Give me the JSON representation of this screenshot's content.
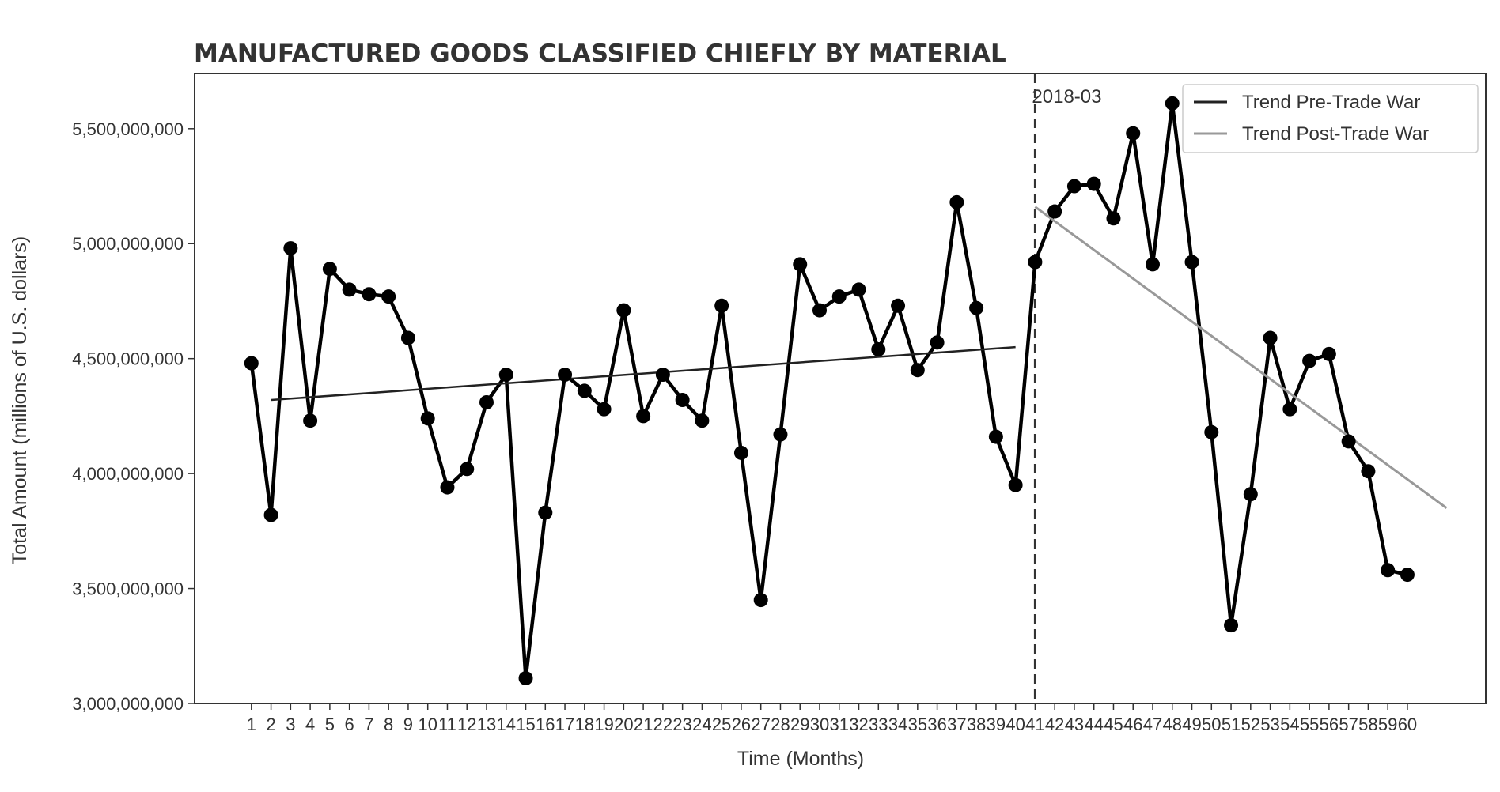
{
  "chart_data": {
    "type": "line",
    "title": "MANUFACTURED GOODS CLASSIFIED CHIEFLY BY MATERIAL",
    "xlabel": "Time (Months)",
    "ylabel": "Total Amount (millions of U.S. dollars)",
    "x": [
      1,
      2,
      3,
      4,
      5,
      6,
      7,
      8,
      9,
      10,
      11,
      12,
      13,
      14,
      15,
      16,
      17,
      18,
      19,
      20,
      21,
      22,
      23,
      24,
      25,
      26,
      27,
      28,
      29,
      30,
      31,
      32,
      33,
      34,
      35,
      36,
      37,
      38,
      39,
      40,
      41,
      42,
      43,
      44,
      45,
      46,
      47,
      48,
      49,
      50,
      51,
      52,
      53,
      54,
      55,
      56,
      57,
      58,
      59,
      60
    ],
    "xtick_labels": [
      "1",
      "2",
      "3",
      "4",
      "5",
      "6",
      "7",
      "8",
      "9",
      "10",
      "11",
      "12",
      "13",
      "14",
      "15",
      "16",
      "17",
      "18",
      "19",
      "20",
      "21",
      "22",
      "23",
      "24",
      "25",
      "26",
      "27",
      "28",
      "29",
      "30",
      "31",
      "32",
      "33",
      "34",
      "35",
      "36",
      "37",
      "38",
      "39",
      "40",
      "41",
      "42",
      "43",
      "44",
      "45",
      "46",
      "47",
      "48",
      "49",
      "50",
      "51",
      "52",
      "53",
      "54",
      "55",
      "56",
      "57",
      "58",
      "59",
      "60"
    ],
    "xlim": [
      -1.9,
      64.0
    ],
    "ylim": [
      3000000000,
      5740000000
    ],
    "yticks": [
      3000000000,
      3500000000,
      4000000000,
      4500000000,
      5000000000,
      5500000000
    ],
    "ytick_labels": [
      "3,000,000,000",
      "3,500,000,000",
      "4,000,000,000",
      "4,500,000,000",
      "5,000,000,000",
      "5,500,000,000"
    ],
    "series": [
      {
        "name": "Total Amount",
        "color": "#000000",
        "marker": "circle",
        "values": [
          4480000000,
          3820000000,
          4980000000,
          4230000000,
          4890000000,
          4800000000,
          4780000000,
          4770000000,
          4590000000,
          4240000000,
          3940000000,
          4020000000,
          4310000000,
          4430000000,
          3110000000,
          3830000000,
          4430000000,
          4360000000,
          4280000000,
          4710000000,
          4250000000,
          4430000000,
          4320000000,
          4230000000,
          4730000000,
          4090000000,
          3450000000,
          4170000000,
          4910000000,
          4710000000,
          4770000000,
          4800000000,
          4540000000,
          4730000000,
          4450000000,
          4570000000,
          5180000000,
          4720000000,
          4160000000,
          3950000000,
          4920000000,
          5140000000,
          5250000000,
          5260000000,
          5110000000,
          5480000000,
          4910000000,
          5610000000,
          4920000000,
          4180000000,
          3340000000,
          3910000000,
          4590000000,
          4280000000,
          4490000000,
          4520000000,
          4140000000,
          4010000000,
          3580000000,
          3560000000
        ]
      },
      {
        "name": "Trend Pre-Trade War",
        "color": "#222222",
        "x": [
          2,
          40
        ],
        "values": [
          4320000000,
          4550000000
        ]
      },
      {
        "name": "Trend Post-Trade War",
        "color": "#999999",
        "x": [
          41,
          62
        ],
        "values": [
          5160000000,
          3850000000
        ]
      }
    ],
    "vline": {
      "x": 41,
      "label": "2018-03",
      "style": "dashed"
    },
    "legend": {
      "position": "top-right",
      "entries": [
        "Trend Pre-Trade War",
        "Trend Post-Trade War"
      ]
    },
    "grid": false
  }
}
